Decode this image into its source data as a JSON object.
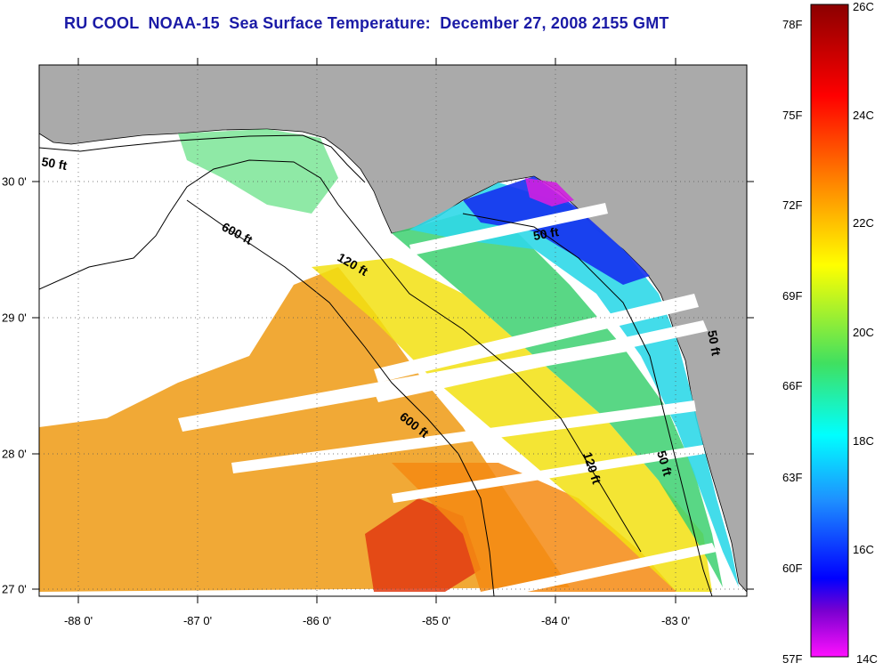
{
  "title": "RU COOL  NOAA-15  Sea Surface Temperature:  December 27, 2008 2155 GMT",
  "map": {
    "x_ticks": [
      "-88 0'",
      "-87 0'",
      "-86 0'",
      "-85 0'",
      "-84 0'",
      "-83 0'"
    ],
    "y_ticks": [
      "30 0'",
      "29 0'",
      "28 0'",
      "27 0'"
    ],
    "contour_labels": [
      "50 ft",
      "600 ft",
      "120 ft",
      "50 ft",
      "600 ft",
      "120 ft",
      "50 ft",
      "50 ft"
    ],
    "colors": {
      "land": "#aaaaaa",
      "no_data": "#ffffff",
      "grid": "#555555"
    }
  },
  "colorbar": {
    "fahrenheit_labels": [
      "78F",
      "75F",
      "72F",
      "69F",
      "66F",
      "63F",
      "60F",
      "57F"
    ],
    "celsius_labels": [
      "26C",
      "24C",
      "22C",
      "20C",
      "18C",
      "16C",
      "14C"
    ],
    "range_c": [
      14,
      26
    ],
    "range_f": [
      57,
      79
    ]
  }
}
